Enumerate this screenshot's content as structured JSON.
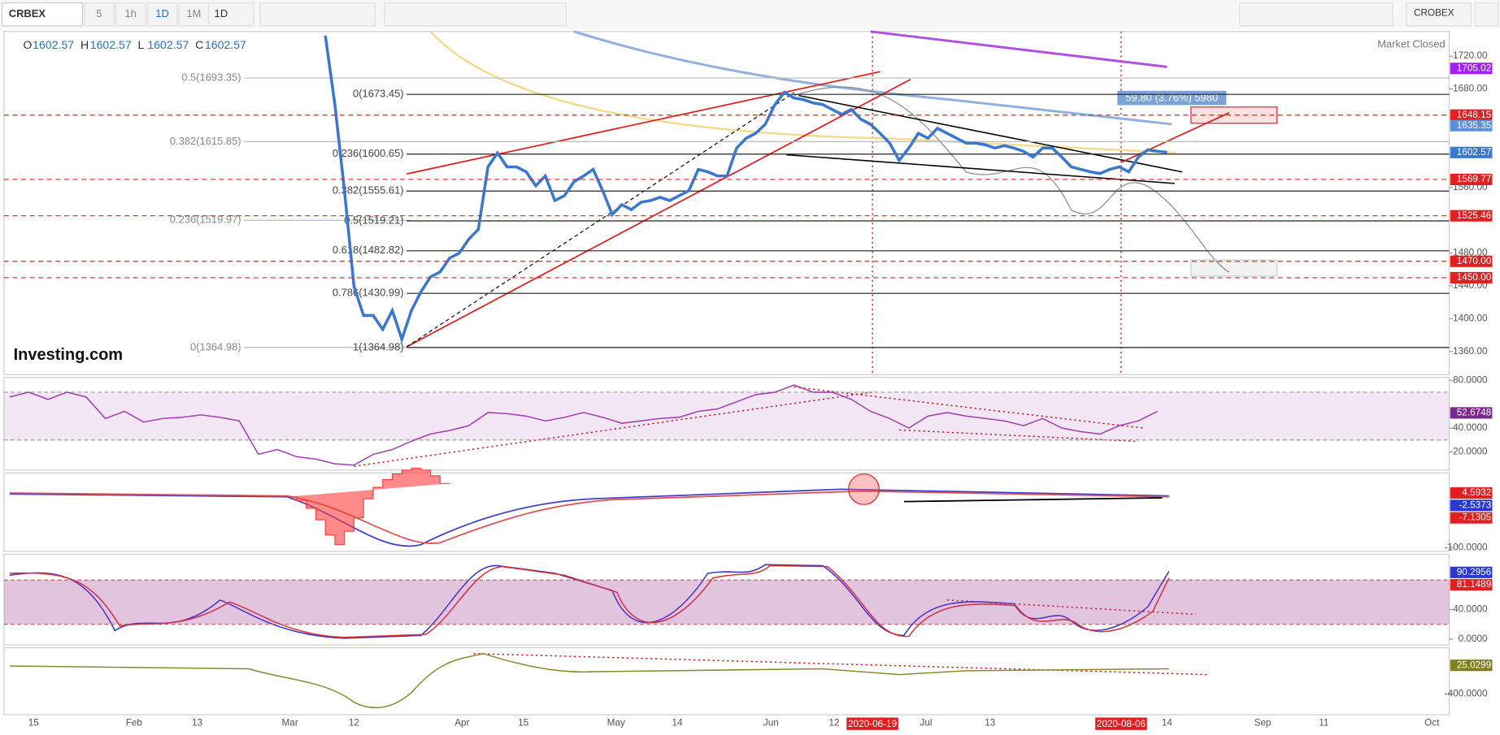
{
  "toolbar": {
    "symbol": "CRBEX",
    "intervals": [
      "5",
      "1h",
      "1D",
      "1M"
    ],
    "interval_menu": "1D",
    "index_menu": "CROBEX"
  },
  "legend": {
    "o": "O",
    "open": 1602.57,
    "h": "H",
    "high": 1602.57,
    "l": "L",
    "low": 1602.57,
    "c": "C",
    "close": 1602.57
  },
  "status": "Market Closed",
  "logo": "Investing.com",
  "measure": "59.80 (3.76%) 5980",
  "price": {
    "ylim": [
      1332,
      1750
    ],
    "yticks": [
      {
        "value": 1720,
        "label": "1720.00"
      },
      {
        "value": 1680,
        "label": "1680.00"
      },
      {
        "value": 1560,
        "label": "1560.00"
      },
      {
        "value": 1480,
        "label": "1480.00"
      },
      {
        "value": 1440,
        "label": "1440.00"
      },
      {
        "value": 1400,
        "label": "1400.00"
      },
      {
        "value": 1360,
        "label": "1360.00"
      }
    ],
    "color": "#3a78d0",
    "values": [
      1745,
      1661,
      1556,
      1439,
      1404,
      1404,
      1387,
      1410,
      1375,
      1410,
      1433,
      1451,
      1457,
      1474,
      1480,
      1497,
      1509,
      1585,
      1602,
      1585,
      1585,
      1579,
      1562,
      1574,
      1544,
      1550,
      1567,
      1574,
      1582,
      1556,
      1527,
      1539,
      1533,
      1542,
      1544,
      1548,
      1544,
      1550,
      1556,
      1582,
      1579,
      1574,
      1574,
      1608,
      1620,
      1626,
      1637,
      1661,
      1676,
      1669,
      1667,
      1663,
      1661,
      1655,
      1649,
      1655,
      1643,
      1637,
      1626,
      1614,
      1593,
      1608,
      1626,
      1620,
      1632,
      1626,
      1620,
      1614,
      1614,
      1612,
      1608,
      1611,
      1608,
      1604,
      1597,
      1608,
      1608,
      1597,
      1585,
      1582,
      1579,
      1577,
      1582,
      1585,
      1579,
      1597,
      1606,
      1604,
      1603
    ],
    "fib_right": [
      {
        "value": 1673.45,
        "label": "0(1673.45)"
      },
      {
        "value": 1600.65,
        "label": "0.236(1600.65)"
      },
      {
        "value": 1555.61,
        "label": "0.382(1555.61)"
      },
      {
        "value": 1519.21,
        "label": "0.5(1519.21)"
      },
      {
        "value": 1482.82,
        "label": "0.618(1482.82)"
      },
      {
        "value": 1430.99,
        "label": "0.786(1430.99)"
      },
      {
        "value": 1364.98,
        "label": "1(1364.98)"
      }
    ],
    "fib_left": [
      {
        "value": 1693.35,
        "label": "0.5(1693.35)"
      },
      {
        "value": 1615.85,
        "label": "0.382(1615.85)"
      },
      {
        "value": 1519.97,
        "label": "0.236(1519.97)"
      },
      {
        "value": 1364.98,
        "label": "0(1364.98)"
      }
    ],
    "tags": [
      {
        "value": 1705.02,
        "color": "#a020f0"
      },
      {
        "value": 1648.15,
        "color": "#e02020"
      },
      {
        "value": 1635.35,
        "color": "#5b8fd8"
      },
      {
        "value": 1602.57,
        "color": "#3a78d0"
      },
      {
        "value": 1569.77,
        "color": "#e02020"
      },
      {
        "value": 1525.46,
        "color": "#e02020"
      },
      {
        "value": 1470,
        "label": "1470.00",
        "color": "#e02020"
      },
      {
        "value": 1450,
        "label": "1450.00",
        "color": "#e02020"
      }
    ]
  },
  "rsi": {
    "ylim": [
      4.8,
      82.4
    ],
    "yticks": [
      {
        "value": 80,
        "label": "80.0000"
      },
      {
        "value": 40,
        "label": "40.0000"
      },
      {
        "value": 20,
        "label": "20.0000"
      }
    ],
    "band": [
      30,
      70
    ],
    "color": "#a040b0",
    "values": [
      66,
      70,
      64,
      70,
      66,
      48,
      54,
      45,
      48,
      49,
      51,
      49,
      46,
      18,
      22,
      16,
      14,
      10,
      9,
      18,
      22,
      29,
      35,
      38,
      42,
      53,
      52,
      50,
      46,
      49,
      53,
      49,
      44,
      46,
      48,
      49,
      54,
      56,
      62,
      68,
      70,
      76,
      70,
      70,
      64,
      54,
      48,
      40,
      50,
      53,
      50,
      48,
      46,
      42,
      48,
      40,
      37,
      35,
      42,
      46,
      54
    ],
    "last": {
      "value": 52.6748,
      "color": "#7a2a8a"
    }
  },
  "macd": {
    "ylim": [
      -109,
      43
    ],
    "yticks": [
      {
        "value": -100,
        "label": "-100.0000"
      }
    ],
    "tags": [
      {
        "value": 4.5932,
        "color": "#e02020"
      },
      {
        "value": -2.5373,
        "color": "#2a3ad0"
      },
      {
        "value": -7.1305,
        "color": "#e02020"
      }
    ]
  },
  "stoch": {
    "ylim": [
      -8,
      115
    ],
    "yticks": [
      {
        "value": 40,
        "label": "40.0000"
      },
      {
        "value": 0,
        "label": "0.0000"
      }
    ],
    "band": [
      20,
      80
    ],
    "tags": [
      {
        "value": 90.2956,
        "color": "#2a3ad0"
      },
      {
        "value": 81.1489,
        "color": "#e02020"
      }
    ]
  },
  "adx": {
    "ylim": [
      -707,
      285
    ],
    "yticks": [
      {
        "value": -400,
        "label": "-400.0000"
      }
    ],
    "tags": [
      {
        "value": 25.0299,
        "color": "#808020"
      }
    ]
  },
  "dates": [
    "15",
    "Feb",
    "13",
    "Mar",
    "12",
    "Apr",
    "15",
    "May",
    "14",
    "Jun",
    "12",
    "Jul",
    "13",
    "14",
    "Sep",
    "11",
    "Oct"
  ],
  "date_markers": [
    "2020-06-19",
    "2020-08-06"
  ]
}
